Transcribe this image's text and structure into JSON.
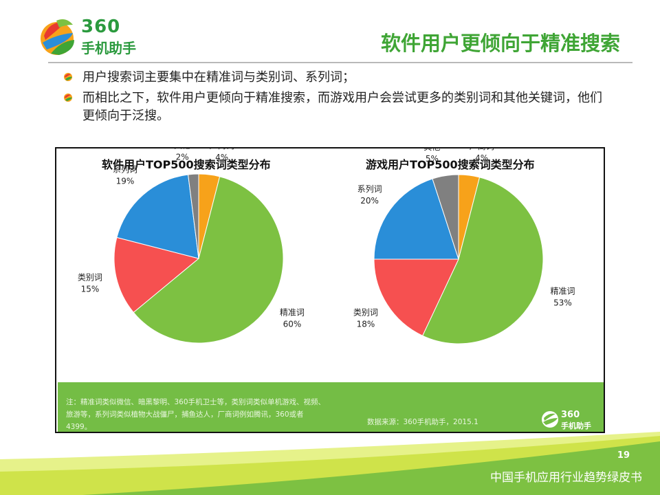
{
  "brand": {
    "logo_number": "360",
    "logo_name": "手机助手"
  },
  "slide": {
    "title": "软件用户更倾向于精准搜索",
    "bullets": [
      "用户搜索词主要集中在精准词与类别词、系列词；",
      "而相比之下，软件用户更倾向于精准搜索，而游戏用户会尝试更多的类别词和其他关键词，他们更倾向于泛搜。"
    ]
  },
  "colors": {
    "brand_green": "#3fa535",
    "note_green": "#74bd45",
    "pie_precise": "#7dc142",
    "pie_category": "#f65050",
    "pie_series": "#2a8ed8",
    "pie_other": "#808080",
    "pie_vendor": "#f7a21a"
  },
  "chart_data": [
    {
      "type": "pie",
      "title": "软件用户TOP500搜索词类型分布",
      "slices": [
        {
          "label": "厂商词",
          "value": 4,
          "value_text": "4%"
        },
        {
          "label": "精准词",
          "value": 60,
          "value_text": "60%"
        },
        {
          "label": "类别词",
          "value": 15,
          "value_text": "15%"
        },
        {
          "label": "系列词",
          "value": 19,
          "value_text": "19%"
        },
        {
          "label": "其他",
          "value": 2,
          "value_text": "2%"
        }
      ]
    },
    {
      "type": "pie",
      "title": "游戏用户TOP500搜索词类型分布",
      "slices": [
        {
          "label": "厂商词",
          "value": 4,
          "value_text": "4%"
        },
        {
          "label": "精准词",
          "value": 53,
          "value_text": "53%"
        },
        {
          "label": "类别词",
          "value": 18,
          "value_text": "18%"
        },
        {
          "label": "系列词",
          "value": 20,
          "value_text": "20%"
        },
        {
          "label": "其他",
          "value": 5,
          "value_text": "5%"
        }
      ]
    }
  ],
  "note": {
    "text": "注：精准词类似微信、暗黑黎明、360手机卫士等，类别词类似单机游戏、视频、旅游等，系列词类似植物大战僵尸，捕鱼达人，厂商词例如腾讯，360或者4399。",
    "source": "数据来源：360手机助手，2015.1",
    "mini_logo_number": "360",
    "mini_logo_name": "手机助手"
  },
  "footer": {
    "page_number": "19",
    "report_title": "中国手机应用行业趋势绿皮书"
  }
}
